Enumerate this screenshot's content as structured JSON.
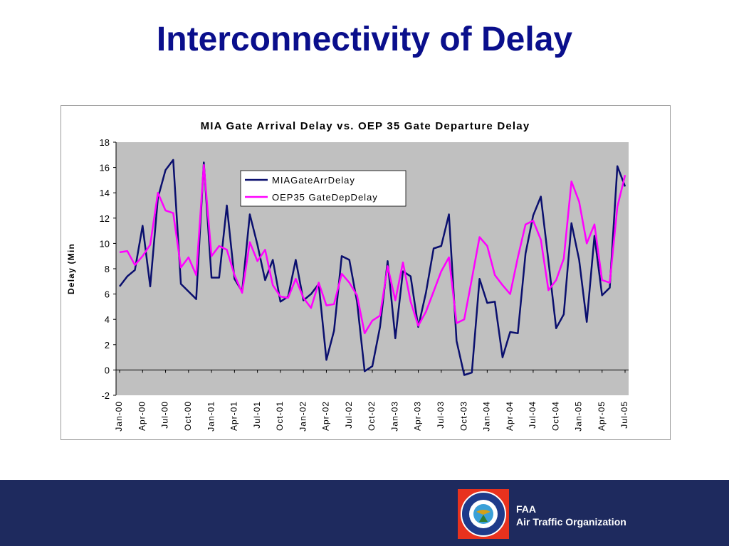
{
  "slide": {
    "title": "Interconnectivity of Delay"
  },
  "footer": {
    "org_short": "FAA",
    "org_long": "Air Traffic Organization",
    "seal_text_top": "FEDERAL AVIATION",
    "seal_text_bottom": "ADMINISTRATION"
  },
  "colors": {
    "title": "#0a0f8c",
    "footer_bg": "#1e2a5e",
    "plot_bg": "#c0c0c0",
    "series_mia": "#0a0f6e",
    "series_oep": "#ff00ff",
    "seal_bg": "#e8321e"
  },
  "chart_data": {
    "type": "line",
    "title": "MIA Gate Arrival Delay vs. OEP 35 Gate Departure Delay",
    "ylabel": "Delay (Min",
    "xlabel": "",
    "ylim": [
      -2,
      18
    ],
    "yticks": [
      -2,
      0,
      2,
      4,
      6,
      8,
      10,
      12,
      14,
      16,
      18
    ],
    "grid": false,
    "legend_position": "top-center",
    "x_tick_labels": [
      "Jan-00",
      "Apr-00",
      "Jul-00",
      "Oct-00",
      "Jan-01",
      "Apr-01",
      "Jul-01",
      "Oct-01",
      "Jan-02",
      "Apr-02",
      "Jul-02",
      "Oct-02",
      "Jan-03",
      "Apr-03",
      "Jul-03",
      "Oct-03",
      "Jan-04",
      "Apr-04",
      "Jul-04",
      "Oct-04",
      "Jan-05",
      "Apr-05",
      "Jul-05"
    ],
    "tick_every": 3,
    "series": [
      {
        "name": "MIAGateArrDelay",
        "values": [
          6.6,
          7.4,
          7.9,
          11.4,
          6.6,
          13.6,
          15.8,
          16.6,
          6.8,
          6.2,
          5.6,
          16.4,
          7.3,
          7.3,
          13.0,
          7.2,
          6.2,
          12.3,
          9.9,
          7.1,
          8.7,
          5.4,
          5.8,
          8.7,
          5.5,
          6.0,
          6.8,
          0.8,
          3.1,
          9.0,
          8.7,
          5.4,
          -0.1,
          0.3,
          3.4,
          8.6,
          2.5,
          7.8,
          7.4,
          3.4,
          6.1,
          9.6,
          9.8,
          12.3,
          2.3,
          -0.4,
          -0.2,
          7.2,
          5.3,
          5.4,
          1.0,
          3.0,
          2.9,
          9.2,
          12.2,
          13.7,
          8.6,
          3.3,
          4.4,
          11.6,
          8.7,
          3.8,
          10.6,
          5.9,
          6.5,
          16.1,
          14.5
        ]
      },
      {
        "name": "OEP35 GateDepDelay",
        "values": [
          9.3,
          9.4,
          8.3,
          9.0,
          9.9,
          14.0,
          12.6,
          12.4,
          8.1,
          8.9,
          7.5,
          16.2,
          9.0,
          9.8,
          9.5,
          7.5,
          6.1,
          10.1,
          8.6,
          9.5,
          6.7,
          5.8,
          5.7,
          7.2,
          5.7,
          4.9,
          6.9,
          5.1,
          5.2,
          7.6,
          6.9,
          5.9,
          2.9,
          3.9,
          4.3,
          8.2,
          5.5,
          8.5,
          5.4,
          3.5,
          4.6,
          6.2,
          7.8,
          8.9,
          3.7,
          4.0,
          7.2,
          10.5,
          9.8,
          7.5,
          6.7,
          6.0,
          8.9,
          11.5,
          11.8,
          10.3,
          6.3,
          7.1,
          8.8,
          14.9,
          13.3,
          10.0,
          11.5,
          7.1,
          6.9,
          12.9,
          15.4
        ]
      }
    ]
  }
}
